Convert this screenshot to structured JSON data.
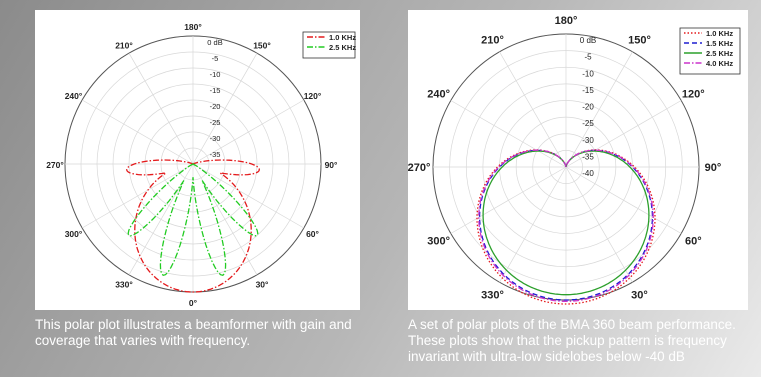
{
  "left_chart": {
    "chart_data": {
      "type": "polar",
      "radial_unit": "dB",
      "rlim": [
        -40,
        0
      ],
      "radial_ticks": [
        "0 dB",
        "-5",
        "-10",
        "-15",
        "-20",
        "-25",
        "-30",
        "-35"
      ],
      "angle_labels": [
        {
          "angle": 180,
          "text": "180°"
        },
        {
          "angle": 150,
          "text": "150°"
        },
        {
          "angle": 120,
          "text": "120°"
        },
        {
          "angle": 90,
          "text": "90°"
        },
        {
          "angle": 60,
          "text": "60°"
        },
        {
          "angle": 30,
          "text": "30°"
        },
        {
          "angle": 0,
          "text": "0°"
        },
        {
          "angle": 330,
          "text": "330°"
        },
        {
          "angle": 300,
          "text": "300°"
        },
        {
          "angle": 270,
          "text": "270°"
        },
        {
          "angle": 240,
          "text": "240°"
        },
        {
          "angle": 210,
          "text": "210°"
        }
      ],
      "legend_position": "top-right",
      "grid": true,
      "series": [
        {
          "name": "1.0 KHz",
          "color": "#e41a1c",
          "dash": "dash-dot",
          "kind": "three-lobe",
          "main_lobe_peak_db": 0,
          "main_lobe_halfwidth_deg": 70,
          "side_lobe_peak_db": -8,
          "side_lobe_center_deg": 85
        },
        {
          "name": "2.5 KHz",
          "color": "#22cc22",
          "dash": "dash-dot",
          "kind": "four-lobe",
          "lobe_peaks_db": [
            -4,
            -4,
            -10,
            -10
          ],
          "lobe_centers_deg": [
            15,
            -15,
            42,
            -42
          ],
          "lobe_halfwidth_deg": 16
        }
      ]
    }
  },
  "right_chart": {
    "chart_data": {
      "type": "polar",
      "radial_unit": "dB",
      "rlim": [
        -40,
        0
      ],
      "radial_ticks": [
        "0 dB",
        "-5",
        "-10",
        "-15",
        "-20",
        "-25",
        "-30",
        "-35",
        "-40"
      ],
      "angle_labels": [
        {
          "angle": 180,
          "text": "180°"
        },
        {
          "angle": 150,
          "text": "150°"
        },
        {
          "angle": 120,
          "text": "120°"
        },
        {
          "angle": 90,
          "text": "90°"
        },
        {
          "angle": 60,
          "text": "60°"
        },
        {
          "angle": 30,
          "text": "30°"
        },
        {
          "angle": 0,
          "text": "0°"
        },
        {
          "angle": 330,
          "text": "330°"
        },
        {
          "angle": 300,
          "text": "300°"
        },
        {
          "angle": 270,
          "text": "270°"
        },
        {
          "angle": 240,
          "text": "240°"
        },
        {
          "angle": 210,
          "text": "210°"
        }
      ],
      "legend_position": "top-right",
      "grid": true,
      "series": [
        {
          "name": "1.0 KHz",
          "color": "#e41a1c",
          "dash": "dotted",
          "kind": "cardioid",
          "scale": 1.03
        },
        {
          "name": "1.5 KHz",
          "color": "#1f1fd0",
          "dash": "dashed",
          "kind": "cardioid",
          "scale": 1.0
        },
        {
          "name": "2.5 KHz",
          "color": "#2ca02c",
          "dash": "solid",
          "kind": "cardioid",
          "scale": 0.96
        },
        {
          "name": "4.0 KHz",
          "color": "#cc33cc",
          "dash": "dash-dot",
          "kind": "cardioid",
          "scale": 1.01
        }
      ]
    }
  },
  "captions": {
    "left": "This polar plot illustrates a beamformer with gain and coverage that varies with frequency.",
    "right": "A set of polar plots of the BMA 360 beam performance. These plots show that the pickup pattern is frequency invariant with ultra-low sidelobes below -40 dB"
  }
}
